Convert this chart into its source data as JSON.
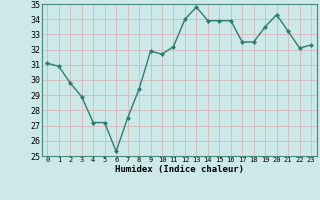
{
  "x": [
    0,
    1,
    2,
    3,
    4,
    5,
    6,
    7,
    8,
    9,
    10,
    11,
    12,
    13,
    14,
    15,
    16,
    17,
    18,
    19,
    20,
    21,
    22,
    23
  ],
  "y": [
    31.1,
    30.9,
    29.8,
    28.9,
    27.2,
    27.2,
    25.3,
    27.5,
    29.4,
    31.9,
    31.7,
    32.2,
    34.0,
    34.8,
    33.9,
    33.9,
    33.9,
    32.5,
    32.5,
    33.5,
    34.3,
    33.2,
    32.1,
    32.3
  ],
  "xlabel": "Humidex (Indice chaleur)",
  "ylim": [
    25,
    35
  ],
  "xlim": [
    -0.5,
    23.5
  ],
  "yticks": [
    25,
    26,
    27,
    28,
    29,
    30,
    31,
    32,
    33,
    34,
    35
  ],
  "xticks": [
    0,
    1,
    2,
    3,
    4,
    5,
    6,
    7,
    8,
    9,
    10,
    11,
    12,
    13,
    14,
    15,
    16,
    17,
    18,
    19,
    20,
    21,
    22,
    23
  ],
  "line_color": "#2e7d6e",
  "marker_color": "#2e7d6e",
  "bg_color": "#cce8e8",
  "grid_color": "#d4b8b8",
  "marker": "D",
  "marker_size": 2,
  "line_width": 1.0
}
